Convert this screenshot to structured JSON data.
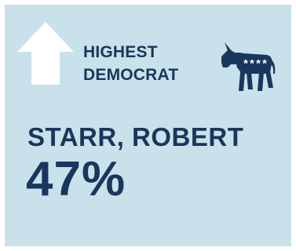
{
  "card": {
    "heading_line1": "HIGHEST",
    "heading_line2": "DEMOCRAT",
    "name": "STARR, ROBERT",
    "percent": "47%"
  },
  "icons": {
    "arrow": "up-arrow-icon",
    "party": "democrat-donkey-icon"
  },
  "colors": {
    "background": "#c9e1ea",
    "text": "#19365c",
    "arrow": "#ffffff"
  }
}
